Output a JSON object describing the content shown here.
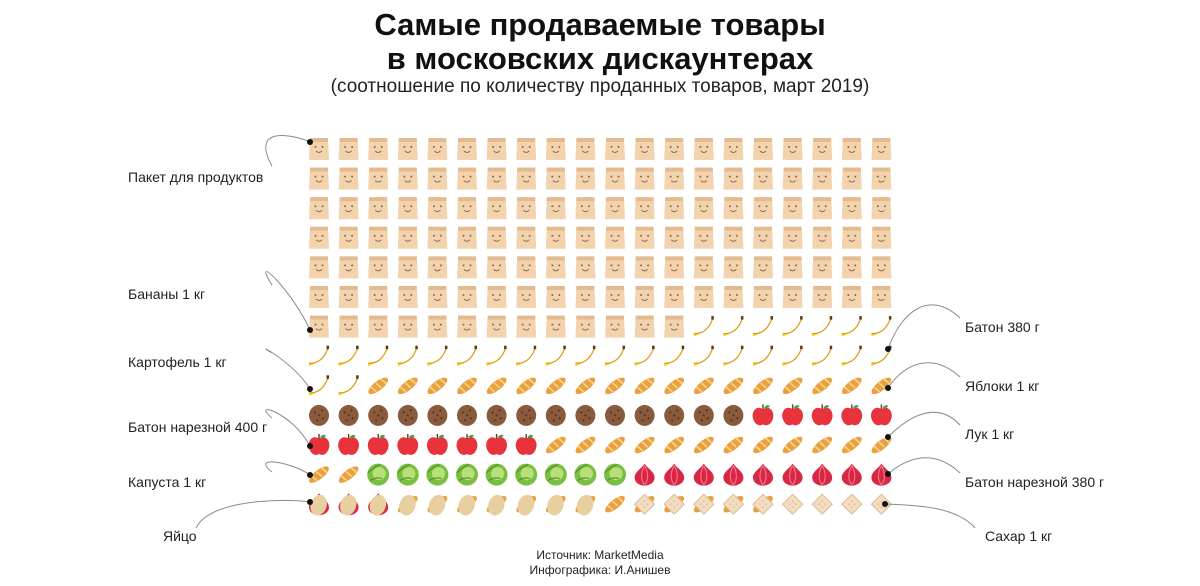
{
  "title_line1": "Самые продаваемые товары",
  "title_line2": "в московских дискаунтерах",
  "subtitle": "(соотношение по количеству проданных товаров, март 2019)",
  "source_line": "Источник: MarketMedia",
  "credit_line": "Инфографика: И.Анишев",
  "chart_data": {
    "type": "table",
    "unit": "иконки",
    "grid_columns": 20,
    "series": [
      {
        "name": "Пакет для продуктов",
        "icon": "paper-bag-icon",
        "count": 133
      },
      {
        "name": "Бананы 1 кг",
        "icon": "banana-icon",
        "count": 29
      },
      {
        "name": "Батон 380 г",
        "icon": "baguette-icon",
        "count": 18
      },
      {
        "name": "Картофель 1 кг",
        "icon": "potato-icon",
        "count": 15
      },
      {
        "name": "Яблоки 1 кг",
        "icon": "apple-icon",
        "count": 13
      },
      {
        "name": "Батон нарезной 400 г",
        "icon": "baguette-icon",
        "count": 14
      },
      {
        "name": "Капуста 1 кг",
        "icon": "cabbage-icon",
        "count": 9
      },
      {
        "name": "Лук 1 кг",
        "icon": "onion-icon",
        "count": 12
      },
      {
        "name": "Батон нарезной 380 г",
        "icon": "baguette-icon",
        "count": 13
      },
      {
        "name": "Яйцо",
        "icon": "egg-icon",
        "count": 10
      },
      {
        "name": "Сахар 1 кг",
        "icon": "sugar-cube-icon",
        "count": 9
      }
    ]
  },
  "colors": {
    "bag": "#f2d3ad",
    "bag_dark": "#e4bb8f",
    "banana": "#ffd21a",
    "banana_dark": "#d99a0a",
    "bread": "#e9a13f",
    "bread_light": "#fbd48e",
    "potato": "#8a5a3c",
    "potato_dark": "#4e3020",
    "apple": "#e8323c",
    "onion": "#d92643",
    "cabbage": "#7bbf42",
    "cabbage_light": "#b8e07a",
    "egg": "#e8cf9f",
    "sugar": "#f3dcc0",
    "sugar_dark": "#d9bb95",
    "leader": "#8c8c8c"
  }
}
